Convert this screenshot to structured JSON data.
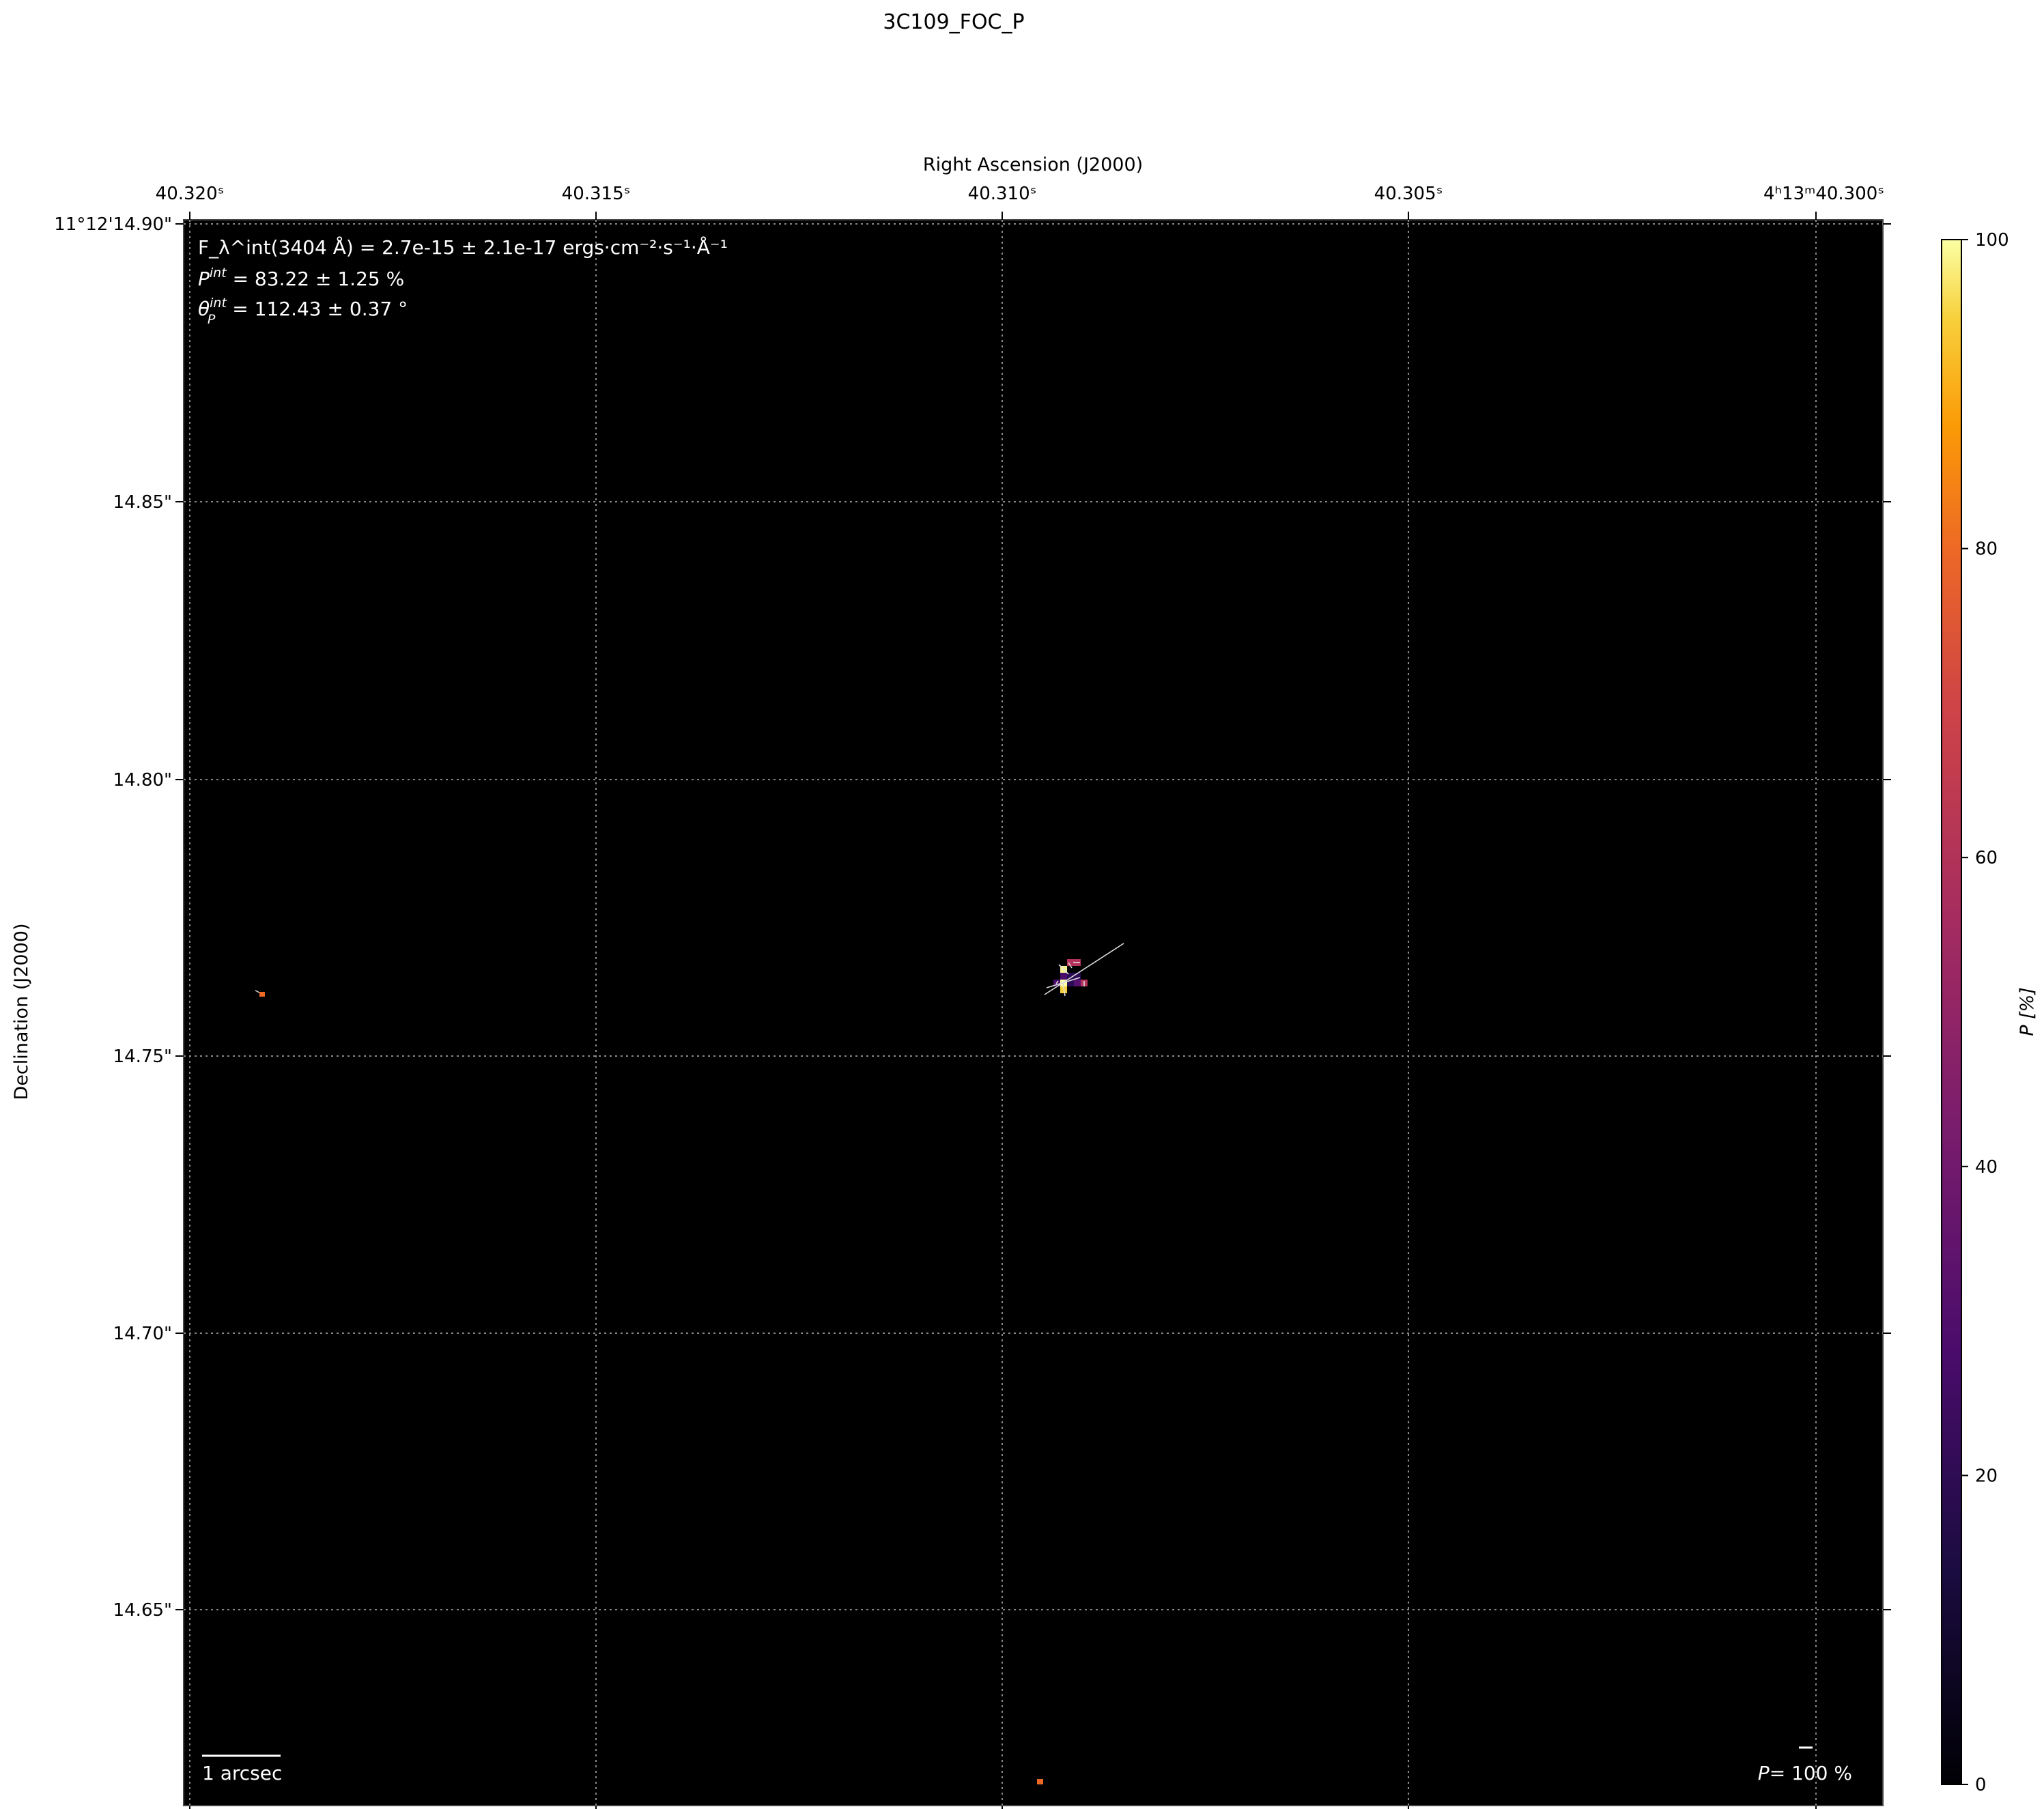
{
  "chart_data": {
    "type": "heatmap",
    "title": "3C109_FOC_P",
    "xlabel": "Right Ascension (J2000)",
    "ylabel": "Declination (J2000)",
    "x_tick_labels": [
      "40.320ˢ",
      "40.315ˢ",
      "40.310ˢ",
      "40.305ˢ",
      "4ʰ13ᵐ40.300ˢ"
    ],
    "y_tick_labels": [
      "11°12'14.90\"",
      "14.85\"",
      "14.80\"",
      "14.75\"",
      "14.70\"",
      "14.65\""
    ],
    "grid": true,
    "colormap": "inferno",
    "colorbar": {
      "label": "P [%]",
      "range": [
        0,
        100
      ],
      "ticks": [
        "0",
        "20",
        "40",
        "60",
        "80",
        "100"
      ]
    },
    "annotations": {
      "flux": "F_λ^int(3404 Å) = 2.7e-15 ± 2.1e-17 ergs·cm⁻²·s⁻¹·Å⁻¹",
      "flux_sym": "F",
      "flux_sup": "int",
      "flux_sub": "λ",
      "flux_rest": "(3404 Å) = 2.7e-15 ± 2.1e-17 ",
      "flux_units": "ergs · cm",
      "flux_u1": "−2",
      "flux_u2": " · s",
      "flux_u3": "−1",
      "flux_u4": " · Å",
      "flux_u5": "−1",
      "pol_sym": "P",
      "pol_sup": "int",
      "pol_rest": " = 83.22 ± 1.25 %",
      "angle_sym": "θ",
      "angle_sup": "int",
      "angle_sub": "P",
      "angle_rest": " = 112.43 ± 0.37 °",
      "scale_bar": "1 arcsec",
      "vector_scale_sym": "P",
      "vector_scale": "= 100 %"
    },
    "background_color": "#000000"
  }
}
